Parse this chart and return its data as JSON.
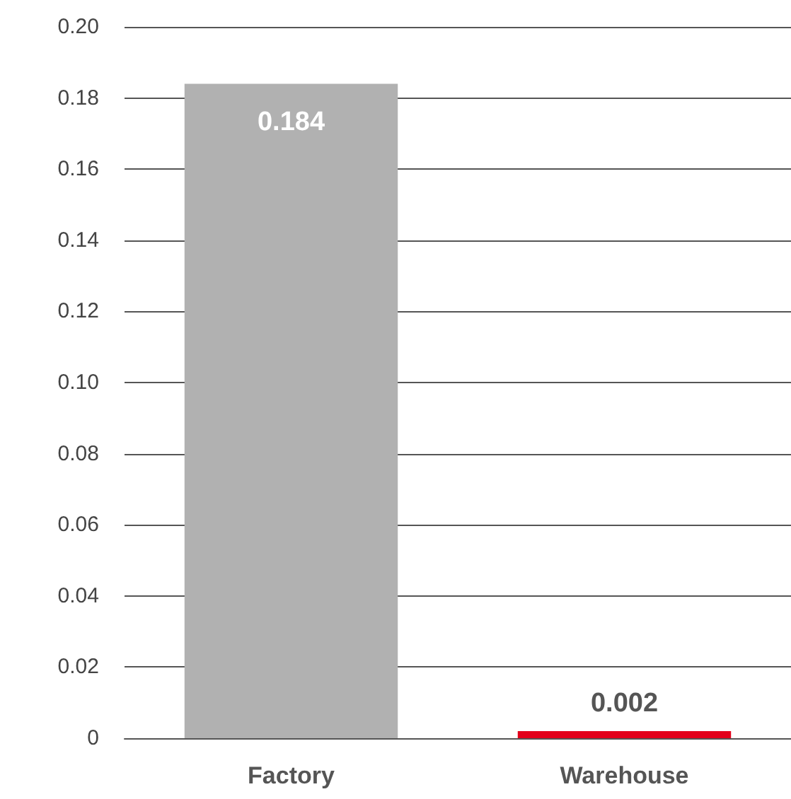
{
  "chart_data": {
    "type": "bar",
    "categories": [
      "Factory",
      "Warehouse"
    ],
    "values": [
      0.184,
      0.002
    ],
    "colors": [
      "#b1b1b1",
      "#e2001a"
    ],
    "data_labels": true,
    "ylim": [
      0,
      0.2
    ],
    "yticks": [
      0,
      0.02,
      0.04,
      0.06,
      0.08,
      {
        "value": 0.1,
        "label": "0.10"
      },
      0.12,
      0.14,
      0.16,
      0.18,
      {
        "value": 0.2,
        "label": "0.20"
      }
    ],
    "grid": "y"
  }
}
